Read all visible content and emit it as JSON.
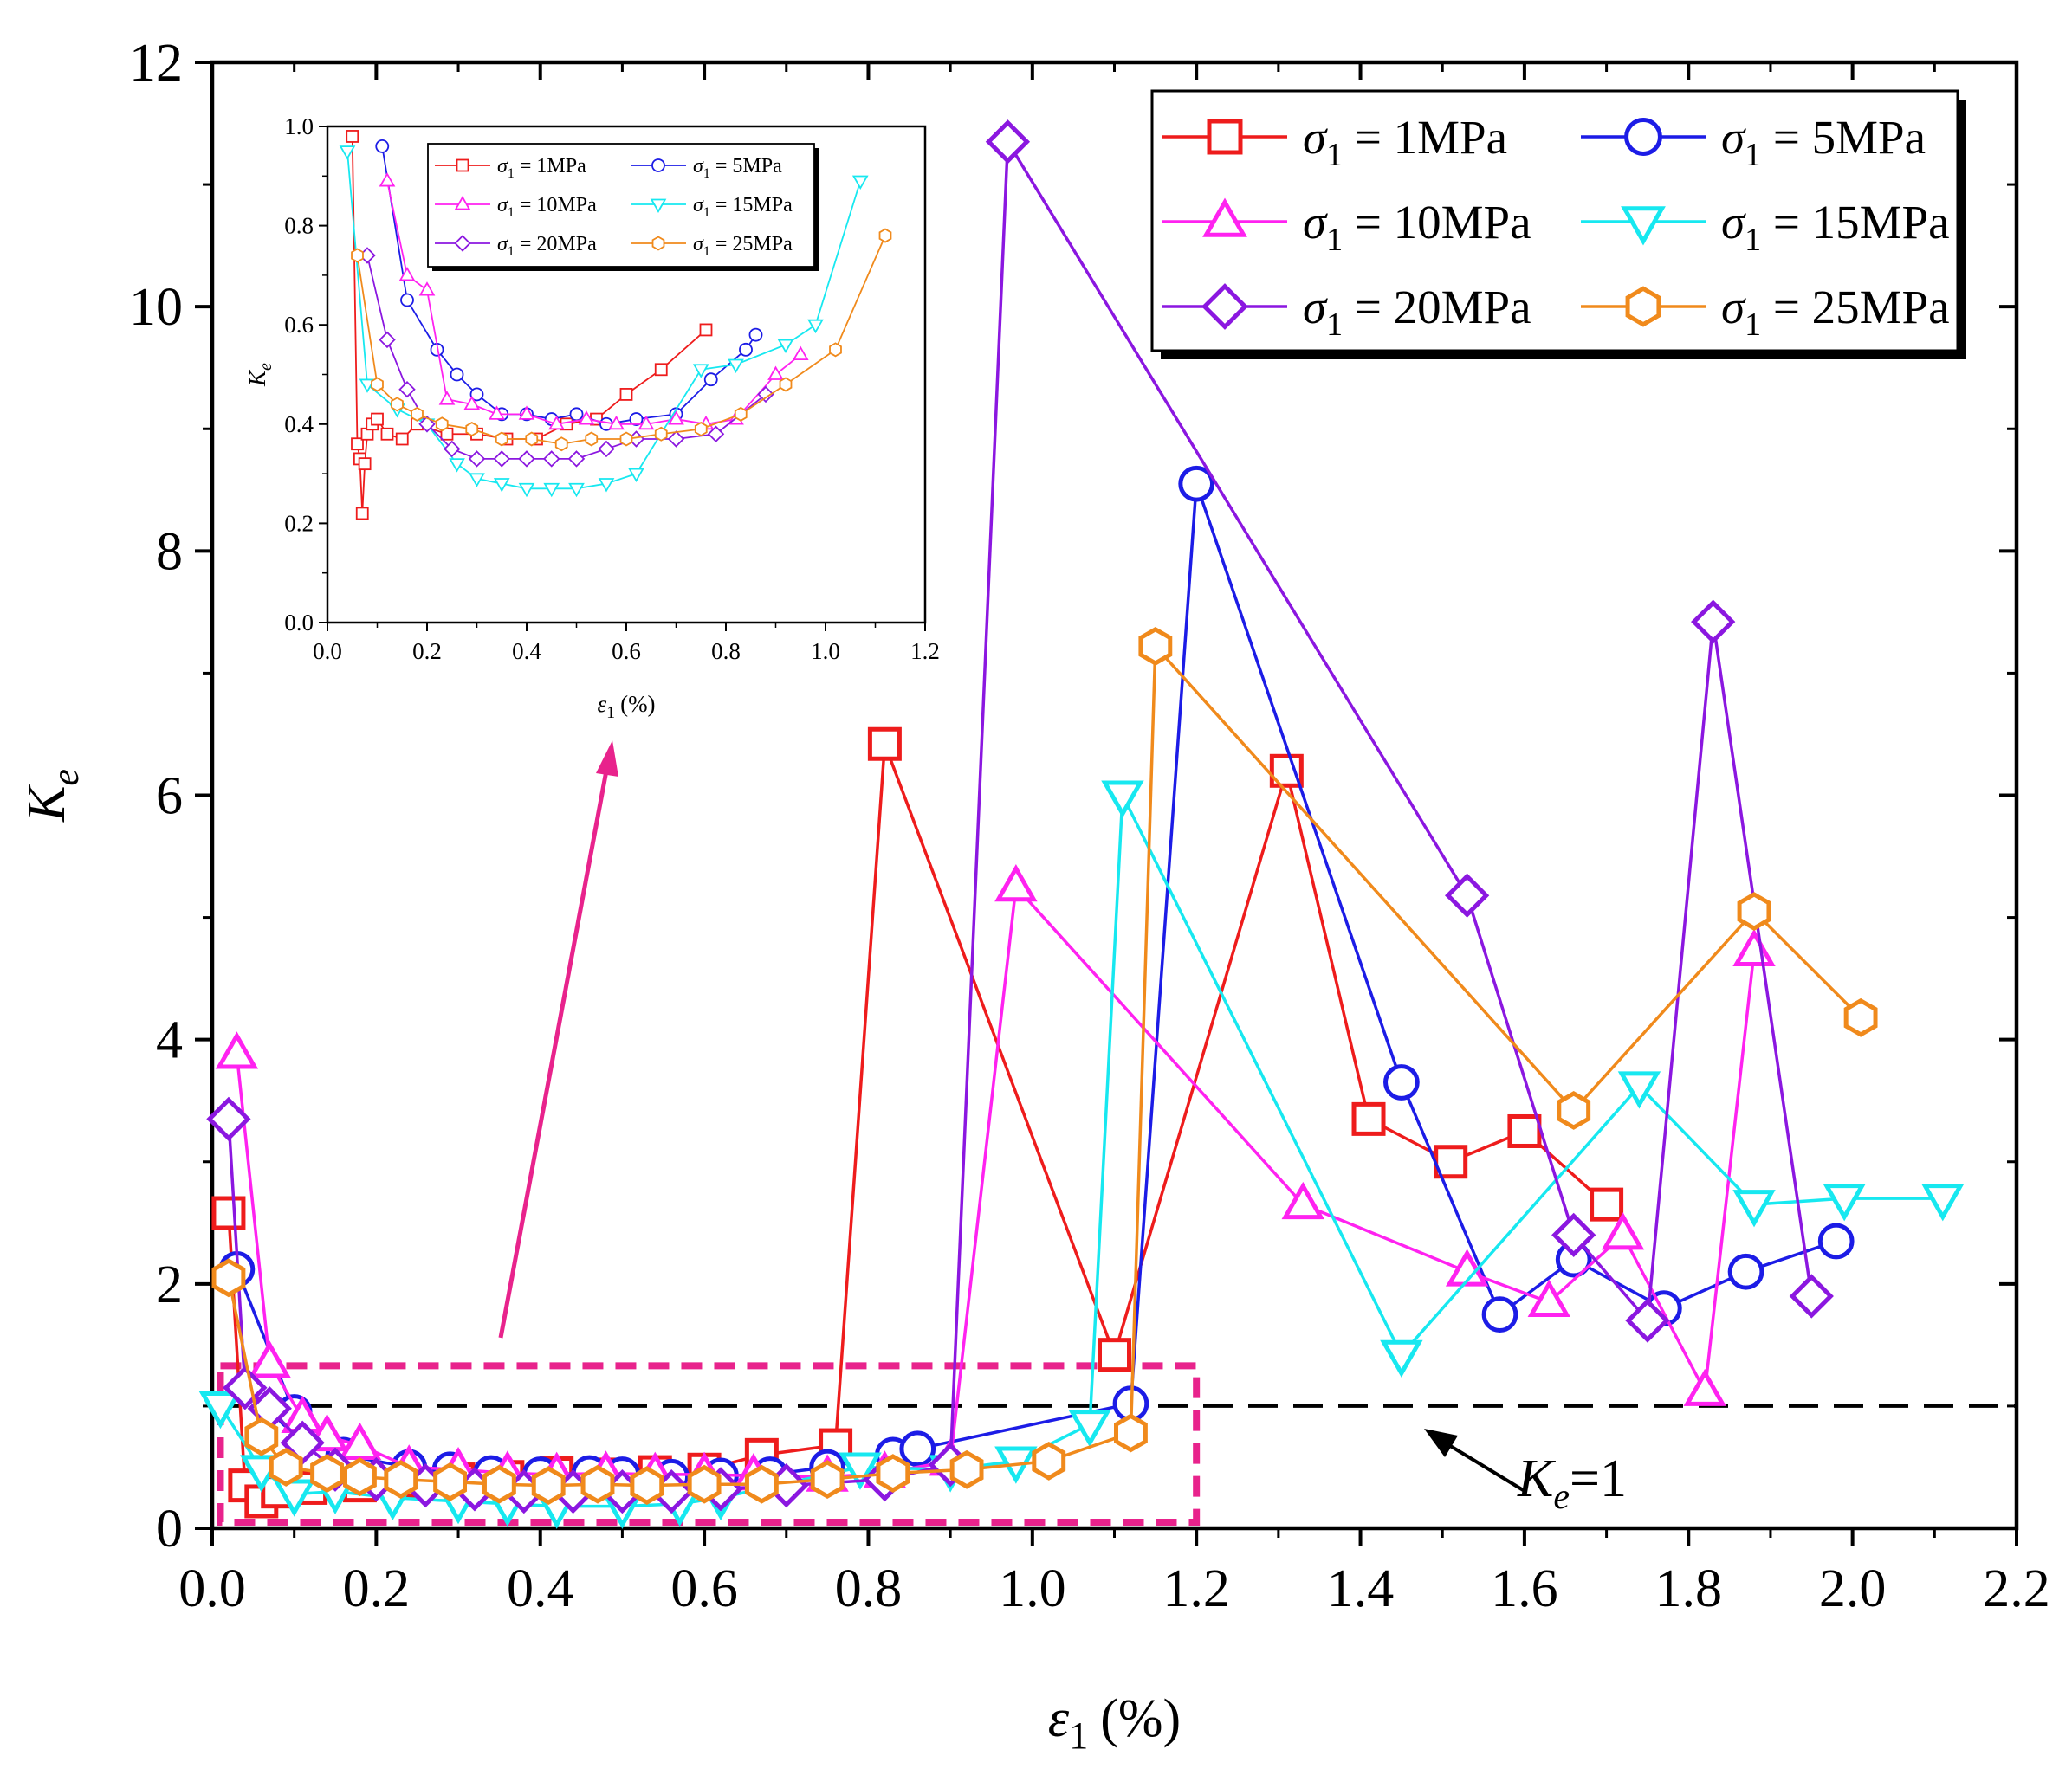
{
  "chart_data": [
    {
      "type": "line",
      "xlabel": {
        "sym": "ε",
        "sub": "1",
        "unit": "(%)"
      },
      "ylabel": {
        "sym": "K",
        "sub": "e"
      },
      "xlim": [
        0,
        2.2
      ],
      "ylim": [
        0,
        12
      ],
      "x_ticks": [
        "0.0",
        "0.2",
        "0.4",
        "0.6",
        "0.8",
        "1.0",
        "1.2",
        "1.4",
        "1.6",
        "1.8",
        "2.0",
        "2.2"
      ],
      "y_ticks": [
        "0",
        "2",
        "4",
        "6",
        "8",
        "10",
        "12"
      ],
      "grid": false,
      "legend_position": "top-right",
      "reference_line": {
        "y": 1,
        "label_sym": "K",
        "label_sub": "e",
        "label_rest": "=1",
        "style": "dashed",
        "color": "#000000"
      },
      "highlight_box": {
        "x_range": [
          0.01,
          1.2
        ],
        "y_range": [
          0.05,
          1.33
        ],
        "color": "#E8238C",
        "style": "dashed"
      },
      "series": [
        {
          "name": "σ1 = 1MPa",
          "name_sym": "σ",
          "name_sub": "1",
          "name_rest": " = 1MPa",
          "color": "#EE1C1C",
          "marker": "square",
          "x": [
            0.02,
            0.04,
            0.06,
            0.08,
            0.12,
            0.18,
            0.24,
            0.3,
            0.36,
            0.42,
            0.48,
            0.54,
            0.6,
            0.67,
            0.76,
            0.82,
            1.1,
            1.31,
            1.41,
            1.51,
            1.6,
            1.7
          ],
          "y": [
            2.58,
            0.35,
            0.22,
            0.3,
            0.33,
            0.35,
            0.38,
            0.4,
            0.42,
            0.45,
            0.44,
            0.46,
            0.48,
            0.6,
            0.68,
            6.42,
            1.42,
            6.2,
            3.35,
            3.0,
            3.25,
            2.65
          ]
        },
        {
          "name": "σ1 = 5MPa",
          "name_sym": "σ",
          "name_sub": "1",
          "name_rest": " = 5MPa",
          "color": "#1C1CE6",
          "marker": "circle",
          "x": [
            0.03,
            0.1,
            0.16,
            0.24,
            0.29,
            0.34,
            0.4,
            0.46,
            0.5,
            0.56,
            0.62,
            0.68,
            0.75,
            0.83,
            0.86,
            1.12,
            1.2,
            1.45,
            1.57,
            1.66,
            1.77,
            1.87,
            1.98
          ],
          "y": [
            2.12,
            0.95,
            0.6,
            0.5,
            0.48,
            0.45,
            0.44,
            0.45,
            0.44,
            0.42,
            0.43,
            0.44,
            0.5,
            0.6,
            0.65,
            1.02,
            8.55,
            3.65,
            1.75,
            2.2,
            1.8,
            2.1,
            2.35
          ]
        },
        {
          "name": "σ1 = 10MPa",
          "name_sym": "σ",
          "name_sub": "1",
          "name_rest": " = 10MPa",
          "color": "#FF22F0",
          "marker": "triangle-up",
          "x": [
            0.03,
            0.07,
            0.11,
            0.14,
            0.18,
            0.24,
            0.3,
            0.36,
            0.42,
            0.48,
            0.54,
            0.6,
            0.66,
            0.75,
            0.82,
            0.9,
            0.98,
            1.33,
            1.53,
            1.63,
            1.72,
            1.82,
            1.88
          ],
          "y": [
            3.88,
            1.35,
            0.9,
            0.75,
            0.68,
            0.5,
            0.48,
            0.45,
            0.44,
            0.45,
            0.44,
            0.44,
            0.43,
            0.42,
            0.45,
            0.55,
            5.25,
            2.65,
            2.1,
            1.85,
            2.4,
            1.12,
            4.72
          ]
        },
        {
          "name": "σ1 = 15MPa",
          "name_sym": "σ",
          "name_sub": "1",
          "name_rest": " = 15MPa",
          "color": "#17E8F0",
          "marker": "triangle-down",
          "x": [
            0.01,
            0.06,
            0.1,
            0.15,
            0.22,
            0.3,
            0.36,
            0.42,
            0.5,
            0.57,
            0.62,
            0.79,
            0.9,
            0.98,
            1.07,
            1.11,
            1.45,
            1.74,
            1.88,
            1.99,
            2.11
          ],
          "y": [
            1.0,
            0.48,
            0.28,
            0.3,
            0.25,
            0.22,
            0.2,
            0.18,
            0.18,
            0.2,
            0.25,
            0.5,
            0.48,
            0.55,
            0.85,
            6.0,
            1.42,
            3.62,
            2.65,
            2.7,
            2.7
          ]
        },
        {
          "name": "σ1 = 20MPa",
          "name_sym": "σ",
          "name_sub": "1",
          "name_rest": " = 20MPa",
          "color": "#8B17E0",
          "marker": "diamond",
          "x": [
            0.02,
            0.04,
            0.07,
            0.11,
            0.15,
            0.2,
            0.26,
            0.32,
            0.38,
            0.44,
            0.5,
            0.56,
            0.62,
            0.7,
            0.82,
            0.9,
            0.97,
            1.53,
            1.66,
            1.75,
            1.83,
            1.95
          ],
          "y": [
            3.35,
            1.15,
            0.98,
            0.7,
            0.48,
            0.4,
            0.35,
            0.32,
            0.3,
            0.3,
            0.3,
            0.3,
            0.32,
            0.35,
            0.4,
            0.52,
            11.35,
            5.18,
            2.4,
            1.7,
            7.42,
            1.9
          ]
        },
        {
          "name": "σ1 = 25MPa",
          "name_sym": "σ",
          "name_sub": "1",
          "name_rest": " = 25MPa",
          "color": "#F08A1C",
          "marker": "hexagon",
          "x": [
            0.02,
            0.06,
            0.09,
            0.14,
            0.18,
            0.23,
            0.29,
            0.35,
            0.41,
            0.47,
            0.53,
            0.6,
            0.67,
            0.75,
            0.83,
            0.92,
            1.02,
            1.12,
            1.15,
            1.66,
            1.88,
            2.01
          ],
          "y": [
            2.05,
            0.75,
            0.5,
            0.45,
            0.42,
            0.4,
            0.38,
            0.36,
            0.35,
            0.36,
            0.35,
            0.36,
            0.36,
            0.4,
            0.45,
            0.48,
            0.55,
            0.78,
            7.22,
            3.42,
            5.05,
            4.18
          ]
        }
      ]
    },
    {
      "type": "line",
      "inset": true,
      "xlabel": {
        "sym": "ε",
        "sub": "1",
        "unit": "(%)"
      },
      "ylabel": {
        "sym": "K",
        "sub": "e"
      },
      "xlim": [
        0,
        1.2
      ],
      "ylim": [
        0,
        1.0
      ],
      "x_ticks": [
        "0.0",
        "0.2",
        "0.4",
        "0.6",
        "0.8",
        "1.0",
        "1.2"
      ],
      "y_ticks": [
        "0.0",
        "0.2",
        "0.4",
        "0.6",
        "0.8",
        "1.0"
      ],
      "grid": false,
      "legend_position": "top-right",
      "series": [
        {
          "name": "σ1 = 1MPa",
          "name_sym": "σ",
          "name_sub": "1",
          "name_rest": " = 1MPa",
          "color": "#EE1C1C",
          "marker": "square",
          "x": [
            0.05,
            0.06,
            0.065,
            0.07,
            0.075,
            0.08,
            0.09,
            0.1,
            0.12,
            0.15,
            0.18,
            0.24,
            0.3,
            0.36,
            0.42,
            0.48,
            0.54,
            0.6,
            0.67,
            0.76
          ],
          "y": [
            0.98,
            0.36,
            0.33,
            0.22,
            0.32,
            0.38,
            0.4,
            0.41,
            0.38,
            0.37,
            0.4,
            0.38,
            0.38,
            0.37,
            0.37,
            0.4,
            0.41,
            0.46,
            0.51,
            0.59
          ]
        },
        {
          "name": "σ1 = 5MPa",
          "name_sym": "σ",
          "name_sub": "1",
          "name_rest": " = 5MPa",
          "color": "#1C1CE6",
          "marker": "circle",
          "x": [
            0.11,
            0.16,
            0.22,
            0.26,
            0.3,
            0.35,
            0.4,
            0.45,
            0.5,
            0.56,
            0.62,
            0.7,
            0.77,
            0.84,
            0.86
          ],
          "y": [
            0.96,
            0.65,
            0.55,
            0.5,
            0.46,
            0.42,
            0.42,
            0.41,
            0.42,
            0.4,
            0.41,
            0.42,
            0.49,
            0.55,
            0.58
          ]
        },
        {
          "name": "σ1 = 10MPa",
          "name_sym": "σ",
          "name_sub": "1",
          "name_rest": " = 10MPa",
          "color": "#FF22F0",
          "marker": "triangle-up",
          "x": [
            0.12,
            0.16,
            0.2,
            0.24,
            0.29,
            0.34,
            0.4,
            0.46,
            0.52,
            0.58,
            0.64,
            0.7,
            0.76,
            0.82,
            0.9,
            0.95
          ],
          "y": [
            0.89,
            0.7,
            0.67,
            0.45,
            0.44,
            0.42,
            0.42,
            0.4,
            0.41,
            0.4,
            0.4,
            0.41,
            0.4,
            0.41,
            0.5,
            0.54
          ]
        },
        {
          "name": "σ1 = 15MPa",
          "name_sym": "σ",
          "name_sub": "1",
          "name_rest": " = 15MPa",
          "color": "#17E8F0",
          "marker": "triangle-down",
          "x": [
            0.04,
            0.08,
            0.14,
            0.2,
            0.26,
            0.3,
            0.35,
            0.4,
            0.45,
            0.5,
            0.56,
            0.62,
            0.75,
            0.82,
            0.92,
            0.98,
            1.07
          ],
          "y": [
            0.95,
            0.48,
            0.43,
            0.4,
            0.32,
            0.29,
            0.28,
            0.27,
            0.27,
            0.27,
            0.28,
            0.3,
            0.51,
            0.52,
            0.56,
            0.6,
            0.89
          ]
        },
        {
          "name": "σ1 = 20MPa",
          "name_sym": "σ",
          "name_sub": "1",
          "name_rest": " = 20MPa",
          "color": "#8B17E0",
          "marker": "diamond",
          "x": [
            0.08,
            0.12,
            0.16,
            0.2,
            0.25,
            0.3,
            0.35,
            0.4,
            0.45,
            0.5,
            0.56,
            0.62,
            0.7,
            0.78,
            0.88
          ],
          "y": [
            0.74,
            0.57,
            0.47,
            0.4,
            0.35,
            0.33,
            0.33,
            0.33,
            0.33,
            0.33,
            0.35,
            0.37,
            0.37,
            0.38,
            0.46
          ]
        },
        {
          "name": "σ1 = 25MPa",
          "name_sym": "σ",
          "name_sub": "1",
          "name_rest": " = 25MPa",
          "color": "#F08A1C",
          "marker": "hexagon",
          "x": [
            0.06,
            0.1,
            0.14,
            0.18,
            0.23,
            0.29,
            0.35,
            0.41,
            0.47,
            0.53,
            0.6,
            0.67,
            0.75,
            0.83,
            0.92,
            1.02,
            1.12
          ],
          "y": [
            0.74,
            0.48,
            0.44,
            0.42,
            0.4,
            0.39,
            0.37,
            0.37,
            0.36,
            0.37,
            0.37,
            0.38,
            0.39,
            0.42,
            0.48,
            0.55,
            0.78
          ]
        }
      ]
    }
  ]
}
